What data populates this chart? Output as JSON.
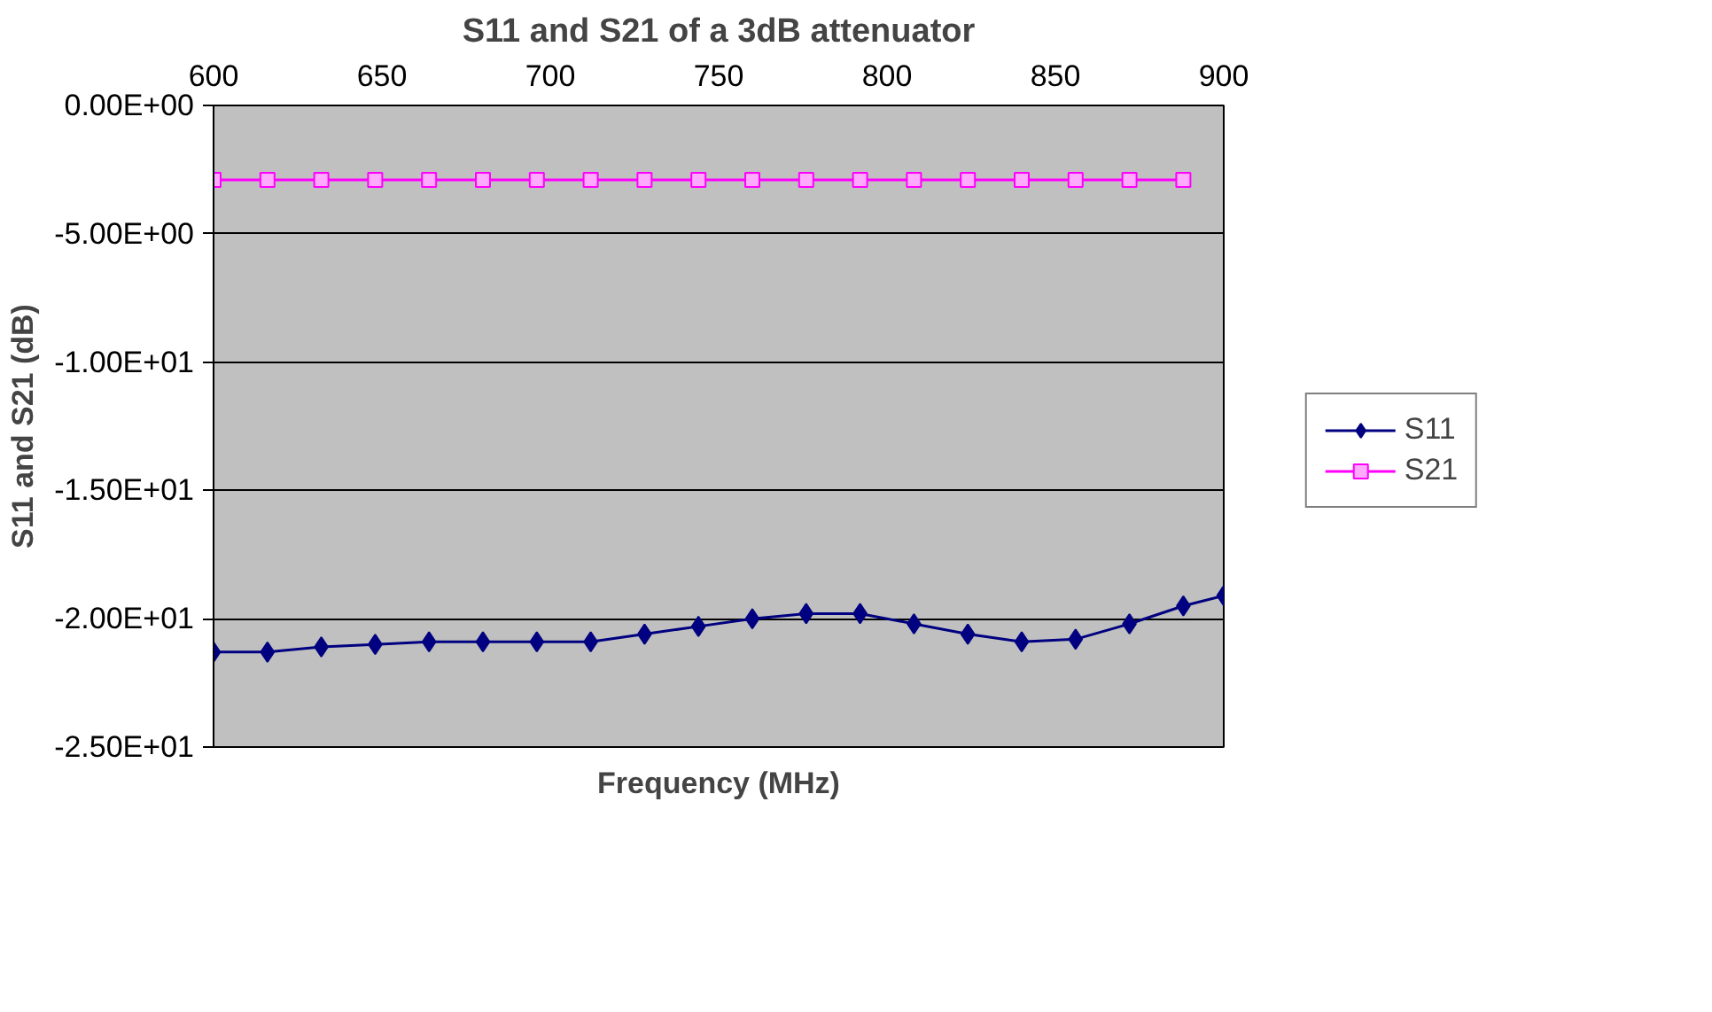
{
  "chart_data": {
    "type": "line",
    "title": "S11 and S21 of a 3dB attenuator",
    "xlabel": "Frequency (MHz)",
    "ylabel": "S11 and S21 (dB)",
    "xlim": [
      600,
      900
    ],
    "xticks": [
      600,
      650,
      700,
      750,
      800,
      850,
      900
    ],
    "ylim": [
      -25,
      0
    ],
    "yticks": [
      {
        "value": 0,
        "label": "0.00E+00"
      },
      {
        "value": -5,
        "label": "-5.00E+00"
      },
      {
        "value": -10,
        "label": "-1.00E+01"
      },
      {
        "value": -15,
        "label": "-1.50E+01"
      },
      {
        "value": -20,
        "label": "-2.00E+01"
      },
      {
        "value": -25,
        "label": "-2.50E+01"
      }
    ],
    "grid": "y",
    "legend": "right",
    "series": [
      {
        "name": "S11",
        "color": "#000080",
        "marker": "diamond",
        "x": [
          600,
          616,
          632,
          648,
          664,
          680,
          696,
          712,
          728,
          744,
          760,
          776,
          792,
          808,
          824,
          840,
          856,
          872,
          888,
          900
        ],
        "values": [
          -21.3,
          -21.3,
          -21.1,
          -21.0,
          -20.9,
          -20.9,
          -20.9,
          -20.9,
          -20.6,
          -20.3,
          -20.0,
          -19.8,
          -19.8,
          -20.2,
          -20.6,
          -20.9,
          -20.8,
          -20.2,
          -19.5,
          -19.1
        ]
      },
      {
        "name": "S21",
        "color": "#ff00ff",
        "marker": "square",
        "x": [
          600,
          616,
          632,
          648,
          664,
          680,
          696,
          712,
          728,
          744,
          760,
          776,
          792,
          808,
          824,
          840,
          856,
          872,
          888
        ],
        "values": [
          -2.9,
          -2.9,
          -2.9,
          -2.9,
          -2.9,
          -2.9,
          -2.9,
          -2.9,
          -2.9,
          -2.9,
          -2.9,
          -2.9,
          -2.9,
          -2.9,
          -2.9,
          -2.9,
          -2.9,
          -2.9,
          -2.9
        ]
      }
    ]
  }
}
